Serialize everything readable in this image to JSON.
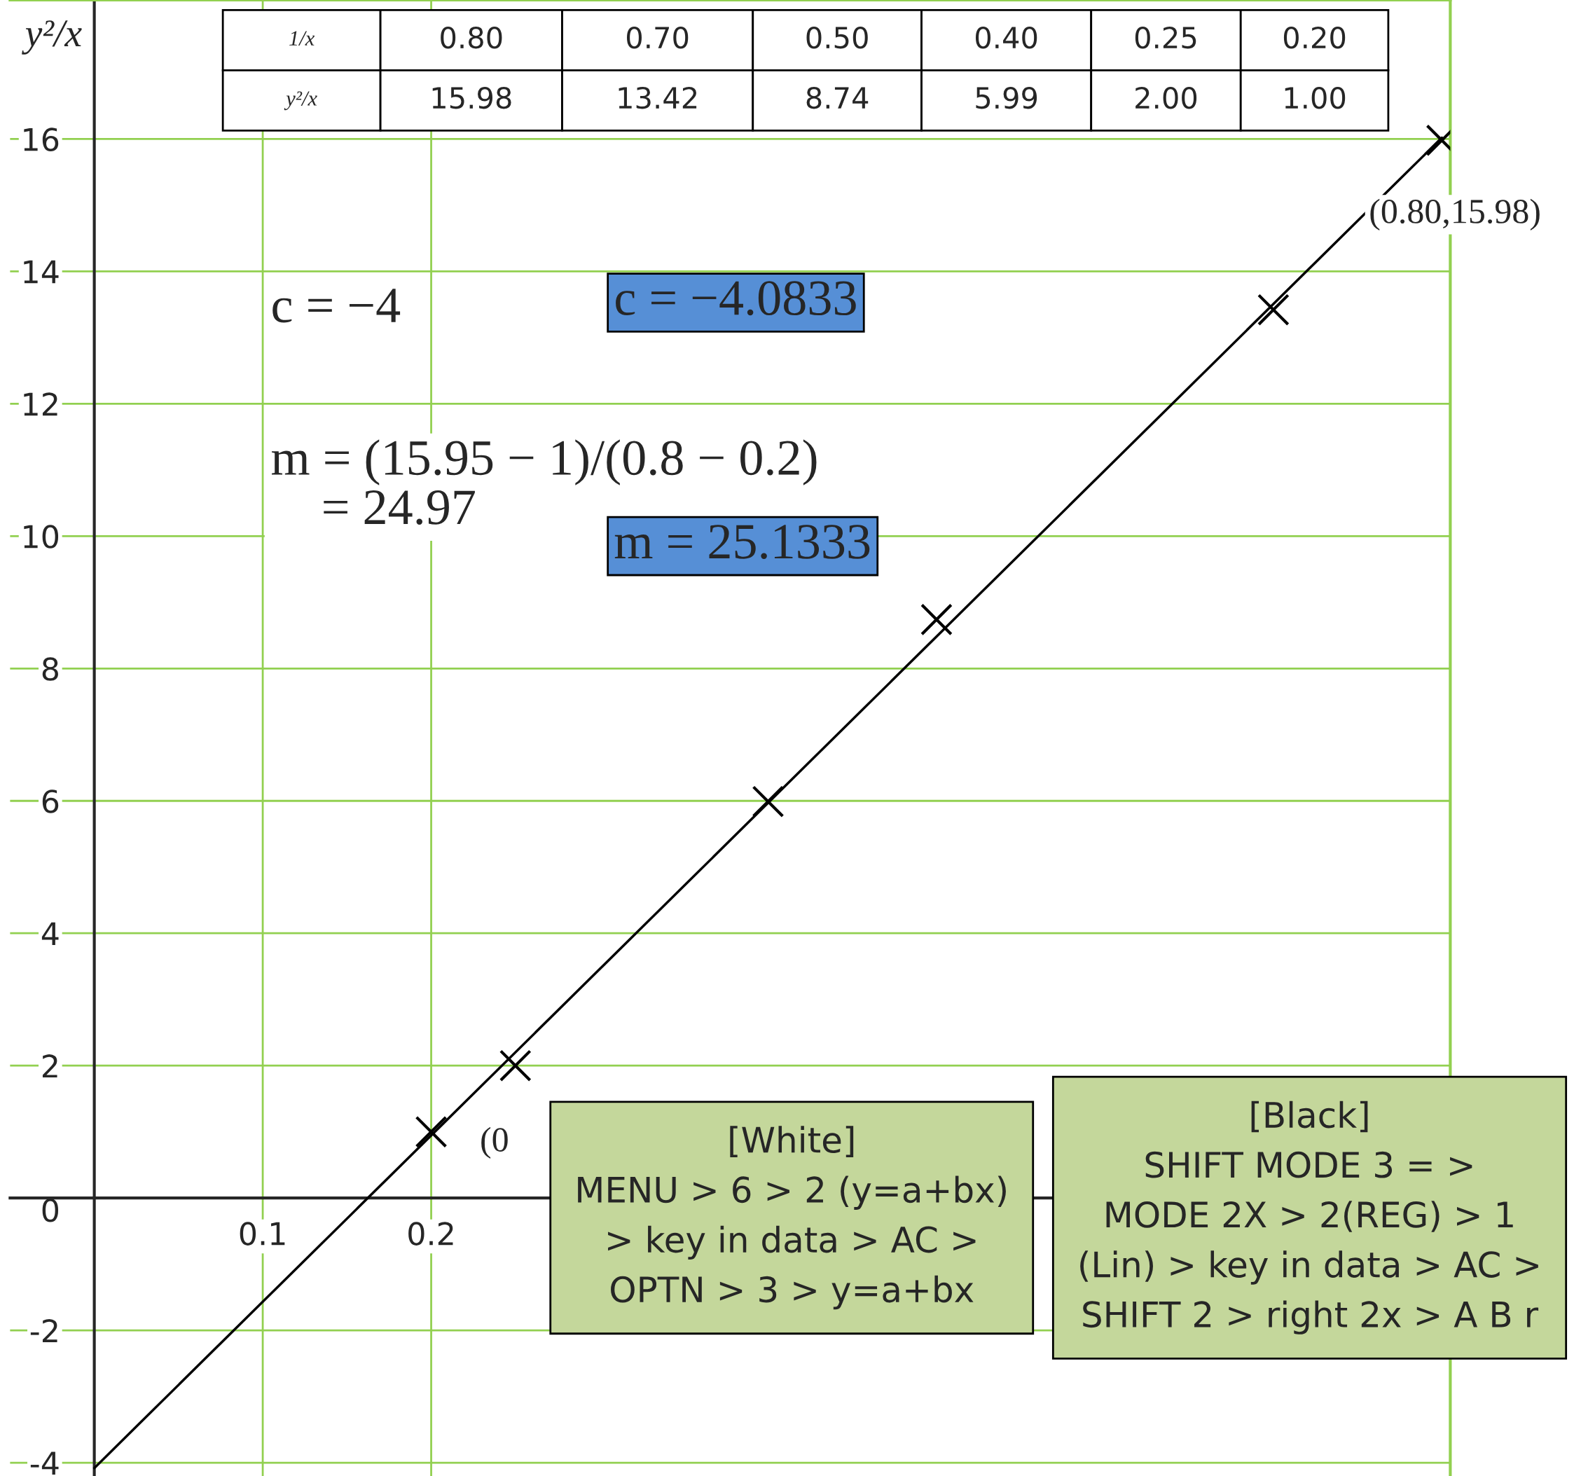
{
  "chart_data": {
    "type": "scatter",
    "ylabel": "y²/x",
    "marker": "cross",
    "grid": true,
    "legend": false,
    "xlim": [
      -0.05,
      0.805
    ],
    "ylim": [
      -4.2,
      18.1
    ],
    "xticks": [
      0.1,
      0.2
    ],
    "yticks": [
      -4,
      -2,
      0,
      2,
      4,
      6,
      8,
      10,
      12,
      14,
      16
    ],
    "series": [
      {
        "color": "#000000",
        "x": [
          0.8,
          0.7,
          0.5,
          0.4,
          0.25,
          0.2
        ],
        "values": [
          15.98,
          13.42,
          8.74,
          5.99,
          2.0,
          1.0
        ]
      },
      {
        "type": "line",
        "color": "#000000",
        "x": [
          0,
          0.8
        ],
        "values": [
          -4.08,
          16.02
        ]
      }
    ],
    "annotations": [
      "c = −4",
      "m = (15.95 − 1)/(0.8 − 0.2)\n    = 24.97",
      "c = −4.0833",
      "m = 25.1333",
      {
        "text": "(0.80,15.98)",
        "x": 0.8,
        "y": 15.98
      },
      {
        "text": "(0",
        "x": 0.2,
        "y": 1.0
      },
      "[White]\nMENU > 6 > 2 (y=a+bx)\n> key in data > AC >\nOPTN > 3 > y=a+bx",
      "[Black]\nSHIFT MODE 3 = >\nMODE 2X > 2(REG) > 1\n(Lin) > key in data > AC >\nSHIFT 2 > right 2x > A B r",
      "1/x",
      "0.80",
      "0.70",
      "0.50",
      "0.40",
      "0.25",
      "0.20",
      "y²/x",
      "15.98",
      "13.42",
      "8.74",
      "5.99",
      "2.00",
      "1.00"
    ]
  }
}
